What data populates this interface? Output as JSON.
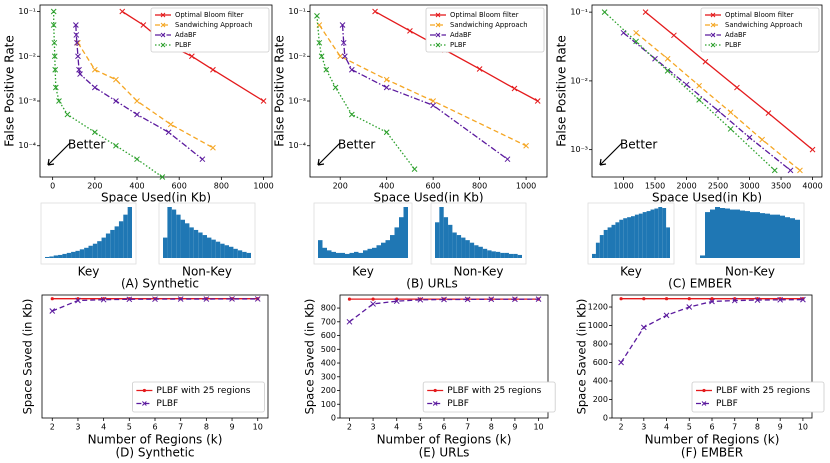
{
  "chart_data": [
    {
      "type": "line",
      "ylog": true,
      "xlabel": "Space Used(in Kb)",
      "ylabel": "False Positive Rate",
      "annotation": "Better",
      "xlim": [
        -60,
        1040
      ],
      "xticks": [
        0,
        200,
        400,
        600,
        800,
        1000
      ],
      "ylim": [
        2e-05,
        0.14
      ],
      "yticks": [
        {
          "value": 0.0001,
          "label": "10⁻⁴"
        },
        {
          "value": 0.001,
          "label": "10⁻³"
        },
        {
          "value": 0.01,
          "label": "10⁻²"
        },
        {
          "value": 0.1,
          "label": "10⁻¹"
        }
      ],
      "series": [
        {
          "name": "Optimal Bloom filter",
          "color": "#e41a1c",
          "style": "solid",
          "x": [
            330,
            430,
            530,
            660,
            760,
            1000
          ],
          "values": [
            0.1,
            0.05,
            0.02,
            0.01,
            0.005,
            0.001
          ]
        },
        {
          "name": "Sandwiching Approach",
          "color": "#f5a623",
          "style": "dashed",
          "x": [
            120,
            200,
            300,
            400,
            560,
            760
          ],
          "values": [
            0.02,
            0.005,
            0.003,
            0.001,
            0.0003,
            9e-05
          ]
        },
        {
          "name": "AdaBF",
          "color": "#5b1a9e",
          "style": "dashdot",
          "x": [
            110,
            112,
            115,
            120,
            125,
            130,
            200,
            300,
            400,
            550,
            710
          ],
          "values": [
            0.05,
            0.03,
            0.02,
            0.01,
            0.005,
            0.004,
            0.002,
            0.001,
            0.0005,
            0.0002,
            5e-05
          ]
        },
        {
          "name": "PLBF",
          "color": "#2ca02c",
          "style": "dotted",
          "x": [
            5,
            5,
            8,
            10,
            12,
            15,
            30,
            70,
            200,
            300,
            400,
            520
          ],
          "values": [
            0.1,
            0.05,
            0.02,
            0.01,
            0.005,
            0.002,
            0.001,
            0.0005,
            0.0002,
            0.0001,
            5e-05,
            2e-05
          ]
        }
      ]
    },
    {
      "type": "line",
      "ylog": true,
      "xlabel": "Space Used(in Kb)",
      "ylabel": "False Positive Rate",
      "annotation": "Better",
      "xlim": [
        70,
        1090
      ],
      "xticks": [
        200,
        400,
        600,
        800,
        1000
      ],
      "ylim": [
        2e-05,
        0.14
      ],
      "yticks": [
        {
          "value": 0.0001,
          "label": "10⁻⁴"
        },
        {
          "value": 0.001,
          "label": "10⁻³"
        },
        {
          "value": 0.01,
          "label": "10⁻²"
        },
        {
          "value": 0.1,
          "label": "10⁻¹"
        }
      ],
      "series": [
        {
          "name": "Optimal Bloom filter",
          "color": "#e41a1c",
          "style": "solid",
          "x": [
            350,
            500,
            650,
            800,
            950,
            1050
          ],
          "values": [
            0.1,
            0.037,
            0.0139,
            0.0052,
            0.0019,
            0.001
          ]
        },
        {
          "name": "Sandwiching Approach",
          "color": "#f5a623",
          "style": "dashed",
          "x": [
            110,
            200,
            400,
            600,
            1000
          ],
          "values": [
            0.05,
            0.01,
            0.003,
            0.001,
            0.0001
          ]
        },
        {
          "name": "AdaBF",
          "color": "#5b1a9e",
          "style": "dashdot",
          "x": [
            210,
            215,
            220,
            250,
            400,
            600,
            920
          ],
          "values": [
            0.05,
            0.02,
            0.01,
            0.005,
            0.002,
            0.0008,
            5e-05
          ]
        },
        {
          "name": "PLBF",
          "color": "#2ca02c",
          "style": "dotted",
          "x": [
            100,
            110,
            120,
            140,
            180,
            250,
            400,
            520
          ],
          "values": [
            0.08,
            0.02,
            0.01,
            0.005,
            0.002,
            0.0005,
            0.0002,
            3e-05
          ]
        }
      ]
    },
    {
      "type": "line",
      "ylog": true,
      "xlabel": "Space Used(in Kb)",
      "ylabel": "False Positive Rate",
      "annotation": "Better",
      "xlim": [
        500,
        4150
      ],
      "xticks": [
        1000,
        1500,
        2000,
        2500,
        3000,
        3500,
        4000
      ],
      "ylim": [
        0.0004,
        0.127
      ],
      "yticks": [
        {
          "value": 0.001,
          "label": "10⁻³"
        },
        {
          "value": 0.01,
          "label": "10⁻²"
        },
        {
          "value": 0.1,
          "label": "10⁻¹"
        }
      ],
      "series": [
        {
          "name": "Optimal Bloom filter",
          "color": "#e41a1c",
          "style": "solid",
          "x": [
            1350,
            1800,
            2300,
            2800,
            3300,
            4000
          ],
          "values": [
            0.1,
            0.046,
            0.019,
            0.008,
            0.0034,
            0.001
          ]
        },
        {
          "name": "Sandwiching Approach",
          "color": "#f5a623",
          "style": "dashed",
          "x": [
            1200,
            1700,
            2200,
            2700,
            3200,
            3800
          ],
          "values": [
            0.05,
            0.021,
            0.0085,
            0.0035,
            0.0014,
            0.0005
          ]
        },
        {
          "name": "AdaBF",
          "color": "#5b1a9e",
          "style": "dashdot",
          "x": [
            1000,
            1500,
            2000,
            2500,
            3000,
            3650
          ],
          "values": [
            0.05,
            0.021,
            0.0088,
            0.0037,
            0.0015,
            0.0005
          ]
        },
        {
          "name": "PLBF",
          "color": "#2ca02c",
          "style": "dotted",
          "x": [
            700,
            1200,
            1700,
            2200,
            2700,
            3400
          ],
          "values": [
            0.1,
            0.0375,
            0.014,
            0.0053,
            0.002,
            0.0005
          ]
        }
      ]
    },
    {
      "type": "bar",
      "title": "Key",
      "color": "#1f77b4",
      "ylim": [
        0,
        1
      ],
      "values": [
        0.02,
        0.03,
        0.05,
        0.06,
        0.08,
        0.1,
        0.12,
        0.14,
        0.17,
        0.2,
        0.24,
        0.28,
        0.33,
        0.4,
        0.48,
        0.55,
        0.62,
        0.72,
        0.85,
        1
      ]
    },
    {
      "type": "bar",
      "title": "Non-Key",
      "color": "#1f77b4",
      "ylim": [
        0,
        1
      ],
      "values": [
        0.4,
        1,
        0.95,
        0.85,
        0.75,
        0.68,
        0.6,
        0.55,
        0.5,
        0.45,
        0.4,
        0.36,
        0.32,
        0.28,
        0.25,
        0.22,
        0.18,
        0.15,
        0.12,
        0.1
      ]
    },
    {
      "type": "bar",
      "title": "Key",
      "color": "#1f77b4",
      "ylim": [
        0,
        1
      ],
      "values": [
        0.35,
        0.2,
        0.15,
        0.12,
        0.1,
        0.1,
        0.08,
        0.1,
        0.12,
        0.1,
        0.15,
        0.18,
        0.2,
        0.25,
        0.3,
        0.35,
        0.45,
        0.6,
        0.8,
        1
      ]
    },
    {
      "type": "bar",
      "title": "Non-Key",
      "color": "#1f77b4",
      "ylim": [
        0,
        1
      ],
      "values": [
        0.7,
        1,
        0.8,
        0.65,
        0.5,
        0.45,
        0.4,
        0.35,
        0.3,
        0.25,
        0.22,
        0.18,
        0.15,
        0.13,
        0.12,
        0.1,
        0.1,
        0.08,
        0.08,
        0.06
      ]
    },
    {
      "type": "bar",
      "title": "Key",
      "color": "#1f77b4",
      "ylim": [
        0,
        1
      ],
      "values": [
        0.08,
        0.3,
        0.45,
        0.55,
        0.6,
        0.65,
        0.7,
        0.75,
        0.78,
        0.8,
        0.82,
        0.85,
        0.87,
        0.9,
        0.92,
        0.95,
        0.97,
        1,
        0.98,
        0.6
      ]
    },
    {
      "type": "bar",
      "title": "Non-Key",
      "color": "#1f77b4",
      "ylim": [
        0,
        1
      ],
      "values": [
        0.05,
        0.9,
        0.95,
        1,
        0.98,
        0.97,
        0.95,
        0.95,
        0.93,
        0.92,
        0.9,
        0.9,
        0.88,
        0.87,
        0.85,
        0.85,
        0.83,
        0.8,
        0.78,
        0.75
      ]
    },
    {
      "type": "line",
      "title": "(D) Synthetic",
      "xlabel": "Number of Regions (k)",
      "ylabel": "Space Saved (in Kb)",
      "x": [
        2,
        3,
        4,
        5,
        6,
        7,
        8,
        9,
        10
      ],
      "xlim": [
        1.6,
        10.4
      ],
      "xticks": [
        2,
        3,
        4,
        5,
        6,
        7,
        8,
        9,
        10
      ],
      "ylim": [
        0,
        1000
      ],
      "series": [
        {
          "name": "PLBF with 25 regions",
          "color": "#e41a1c",
          "style": "solid",
          "marker": "dot",
          "values": [
            970,
            970,
            970,
            970,
            970,
            970,
            970,
            970,
            970
          ]
        },
        {
          "name": "PLBF",
          "color": "#5b1a9e",
          "style": "dashed",
          "values": [
            870,
            955,
            962,
            965,
            966,
            967,
            967,
            968,
            968
          ]
        }
      ]
    },
    {
      "type": "line",
      "title": "(E) URLs",
      "xlabel": "Number of Regions (k)",
      "ylabel": "Space Saved (in Kb)",
      "x": [
        2,
        3,
        4,
        5,
        6,
        7,
        8,
        9,
        10
      ],
      "xlim": [
        1.6,
        10.4
      ],
      "xticks": [
        2,
        3,
        4,
        5,
        6,
        7,
        8,
        9,
        10
      ],
      "ylim": [
        0,
        895
      ],
      "yticks": [
        0,
        100,
        200,
        300,
        400,
        500,
        600,
        700,
        800
      ],
      "series": [
        {
          "name": "PLBF with 25 regions",
          "color": "#e41a1c",
          "style": "solid",
          "marker": "dot",
          "values": [
            865,
            865,
            865,
            865,
            865,
            865,
            865,
            865,
            865
          ]
        },
        {
          "name": "PLBF",
          "color": "#5b1a9e",
          "style": "dashed",
          "values": [
            700,
            830,
            850,
            860,
            862,
            863,
            864,
            864,
            865
          ]
        }
      ]
    },
    {
      "type": "line",
      "title": "(F) EMBER",
      "xlabel": "Number of Regions (k)",
      "ylabel": "Space Saved (in Kb)",
      "x": [
        2,
        3,
        4,
        5,
        6,
        7,
        8,
        9,
        10
      ],
      "xlim": [
        1.6,
        10.4
      ],
      "xticks": [
        2,
        3,
        4,
        5,
        6,
        7,
        8,
        9,
        10
      ],
      "ylim": [
        0,
        1330
      ],
      "yticks": [
        0,
        200,
        400,
        600,
        800,
        1000,
        1200
      ],
      "series": [
        {
          "name": "PLBF with 25 regions",
          "color": "#e41a1c",
          "style": "solid",
          "marker": "dot",
          "values": [
            1290,
            1290,
            1290,
            1290,
            1290,
            1290,
            1290,
            1290,
            1290
          ]
        },
        {
          "name": "PLBF",
          "color": "#5b1a9e",
          "style": "dashed",
          "values": [
            600,
            980,
            1110,
            1200,
            1260,
            1270,
            1275,
            1278,
            1280
          ]
        }
      ]
    }
  ],
  "captions": [
    "(A) Synthetic",
    "(B) URLs",
    "(C) EMBER"
  ]
}
